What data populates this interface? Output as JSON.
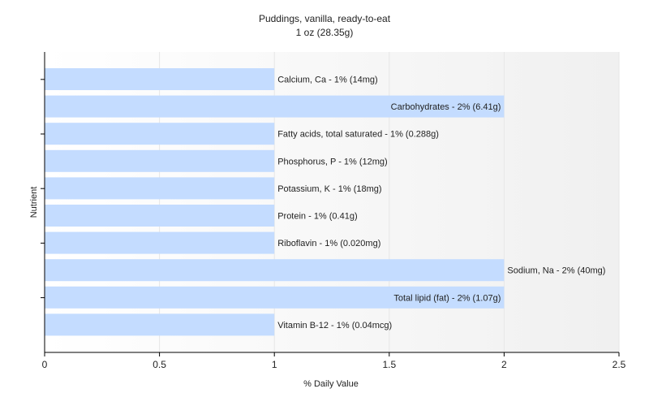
{
  "chart_data": {
    "type": "bar",
    "orientation": "horizontal",
    "title": "Puddings, vanilla, ready-to-eat",
    "subtitle": "1 oz (28.35g)",
    "xlabel": "% Daily Value",
    "ylabel": "Nutrient",
    "xlim": [
      0,
      2.5
    ],
    "xticks": [
      "0",
      "0.5",
      "1",
      "1.5",
      "2",
      "2.5"
    ],
    "xtick_values": [
      0,
      0.5,
      1,
      1.5,
      2,
      2.5
    ],
    "grid": true,
    "categories": [
      "Calcium, Ca",
      "Carbohydrates",
      "Fatty acids, total saturated",
      "Phosphorus, P",
      "Potassium, K",
      "Protein",
      "Riboflavin",
      "Sodium, Na",
      "Total lipid (fat)",
      "Vitamin B-12"
    ],
    "values": [
      1,
      2,
      1,
      1,
      1,
      1,
      1,
      2,
      2,
      1
    ],
    "labels": [
      "Calcium, Ca - 1% (14mg)",
      "Carbohydrates - 2% (6.41g)",
      "Fatty acids, total saturated - 1% (0.288g)",
      "Phosphorus, P - 1% (12mg)",
      "Potassium, K - 1% (18mg)",
      "Protein - 1% (0.41g)",
      "Riboflavin - 1% (0.020mg)",
      "Sodium, Na - 2% (40mg)",
      "Total lipid (fat) - 2% (1.07g)",
      "Vitamin B-12 - 1% (0.04mcg)"
    ],
    "label_position": [
      "outside",
      "inside",
      "outside",
      "outside",
      "outside",
      "outside",
      "outside",
      "outside",
      "inside",
      "outside"
    ],
    "bar_color": "#c4dcff",
    "axis_color": "#000000",
    "grid_color": "#e6e6e6"
  }
}
